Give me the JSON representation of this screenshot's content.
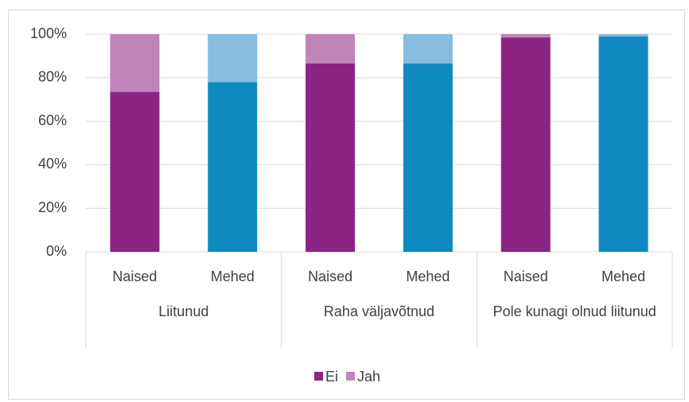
{
  "chart_data": {
    "type": "stacked_bar",
    "categories": [
      "Naised",
      "Mehed",
      "Naised",
      "Mehed",
      "Naised",
      "Mehed"
    ],
    "groups": [
      "Liitunud",
      "Raha väljavõtnud",
      "Pole kunagi olnud liitunud"
    ],
    "series": [
      {
        "name": "Ei",
        "color": "#8b2482",
        "colors": [
          "#8b2482",
          "#0e8ac0",
          "#8b2482",
          "#0e8ac0",
          "#8b2482",
          "#0e8ac0"
        ],
        "values": [
          73.5,
          78,
          86.5,
          86.5,
          98.5,
          99
        ]
      },
      {
        "name": "Jah",
        "color": "#c084b8",
        "colors": [
          "#c084b8",
          "#86bce0",
          "#c084b8",
          "#86bce0",
          "#c084b8",
          "#86bce0"
        ],
        "values": [
          26.5,
          22,
          13.5,
          13.5,
          1.5,
          1
        ]
      }
    ],
    "ylim": [
      0,
      100
    ],
    "yticks": [
      {
        "value": 0,
        "label": "0%"
      },
      {
        "value": 20,
        "label": "20%"
      },
      {
        "value": 40,
        "label": "40%"
      },
      {
        "value": 60,
        "label": "60%"
      },
      {
        "value": 80,
        "label": "80%"
      },
      {
        "value": 100,
        "label": "100%"
      }
    ],
    "grid": true,
    "legend": "bottom"
  }
}
